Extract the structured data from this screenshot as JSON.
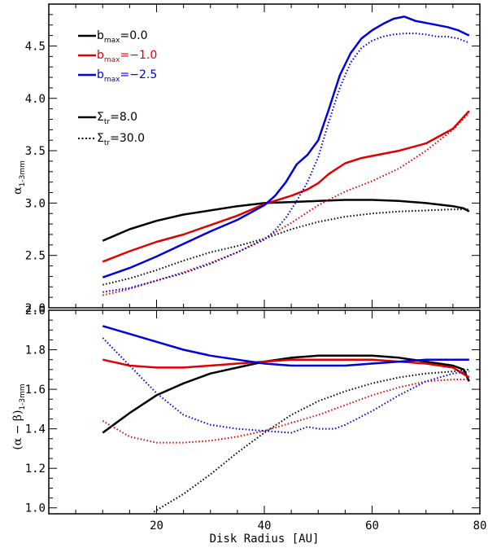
{
  "chart_data": [
    {
      "type": "line",
      "panel": "top",
      "title": "",
      "xlabel": "",
      "ylabel": "α",
      "ylabel_sub": "1-3mm",
      "xlim": [
        0,
        80
      ],
      "ylim": [
        2.0,
        4.9
      ],
      "xticks": [
        20,
        40,
        60,
        80
      ],
      "yticks": [
        2.0,
        2.5,
        3.0,
        3.5,
        4.0,
        4.5
      ],
      "ytick_labels": [
        "2.0",
        "2.5",
        "3.0",
        "3.5",
        "4.0",
        "4.5"
      ],
      "legend": [
        {
          "prefix": "b",
          "sub": "max",
          "suffix": "=0.0",
          "color": "#000000",
          "style": "solid"
        },
        {
          "prefix": "b",
          "sub": "max",
          "suffix": "=−1.0",
          "color": "#e00000",
          "style": "solid"
        },
        {
          "prefix": "b",
          "sub": "max",
          "suffix": "=−2.5",
          "color": "#0000e0",
          "style": "solid"
        },
        {
          "prefix": "Σ",
          "sub": "tr",
          "suffix": "=8.0",
          "color": "#000000",
          "style": "solid"
        },
        {
          "prefix": "Σ",
          "sub": "tr",
          "suffix": "=30.0",
          "color": "#000000",
          "style": "dotted"
        }
      ],
      "series": [
        {
          "color": "#000000",
          "style": "solid",
          "x": [
            10,
            15,
            20,
            25,
            30,
            35,
            40,
            45,
            50,
            55,
            60,
            65,
            70,
            75,
            77,
            78
          ],
          "y": [
            2.64,
            2.75,
            2.83,
            2.89,
            2.93,
            2.97,
            3.0,
            3.01,
            3.02,
            3.03,
            3.03,
            3.02,
            3.0,
            2.97,
            2.95,
            2.92
          ]
        },
        {
          "color": "#e00000",
          "style": "solid",
          "x": [
            10,
            15,
            20,
            25,
            30,
            35,
            40,
            45,
            48,
            50,
            52,
            55,
            58,
            60,
            65,
            70,
            75,
            78
          ],
          "y": [
            2.44,
            2.54,
            2.63,
            2.7,
            2.79,
            2.88,
            2.99,
            3.07,
            3.13,
            3.19,
            3.28,
            3.38,
            3.43,
            3.45,
            3.5,
            3.57,
            3.71,
            3.88
          ]
        },
        {
          "color": "#0000e0",
          "style": "solid",
          "x": [
            10,
            15,
            20,
            25,
            30,
            35,
            40,
            42,
            44,
            46,
            48,
            50,
            52,
            54,
            56,
            58,
            60,
            62,
            64,
            66,
            68,
            70,
            72,
            74,
            76,
            78
          ],
          "y": [
            2.29,
            2.38,
            2.49,
            2.61,
            2.73,
            2.84,
            2.98,
            3.07,
            3.2,
            3.37,
            3.46,
            3.6,
            3.9,
            4.22,
            4.43,
            4.57,
            4.65,
            4.71,
            4.76,
            4.78,
            4.74,
            4.72,
            4.7,
            4.68,
            4.65,
            4.6
          ]
        },
        {
          "color": "#000000",
          "style": "dotted",
          "x": [
            10,
            15,
            20,
            25,
            30,
            35,
            40,
            45,
            50,
            55,
            60,
            65,
            70,
            75,
            78
          ],
          "y": [
            2.22,
            2.28,
            2.36,
            2.45,
            2.53,
            2.59,
            2.66,
            2.75,
            2.82,
            2.87,
            2.9,
            2.92,
            2.93,
            2.94,
            2.94
          ]
        },
        {
          "color": "#e00000",
          "style": "dotted",
          "x": [
            10,
            15,
            20,
            25,
            30,
            35,
            40,
            45,
            50,
            55,
            60,
            65,
            70,
            75,
            78
          ],
          "y": [
            2.12,
            2.18,
            2.26,
            2.34,
            2.43,
            2.53,
            2.66,
            2.81,
            2.98,
            3.11,
            3.21,
            3.33,
            3.5,
            3.7,
            3.86
          ]
        },
        {
          "color": "#0000e0",
          "style": "dotted",
          "x": [
            10,
            15,
            20,
            25,
            30,
            35,
            40,
            42,
            44,
            46,
            48,
            50,
            52,
            54,
            56,
            58,
            60,
            62,
            64,
            66,
            68,
            70,
            72,
            74,
            76,
            78
          ],
          "y": [
            2.15,
            2.19,
            2.26,
            2.33,
            2.42,
            2.53,
            2.65,
            2.74,
            2.86,
            3.02,
            3.2,
            3.44,
            3.78,
            4.1,
            4.34,
            4.48,
            4.55,
            4.59,
            4.61,
            4.62,
            4.62,
            4.61,
            4.59,
            4.59,
            4.57,
            4.53
          ]
        }
      ]
    },
    {
      "type": "line",
      "panel": "bottom",
      "title": "",
      "xlabel": "Disk Radius [AU]",
      "ylabel": "(α − β)",
      "ylabel_sub": "1-3mm",
      "xlim": [
        0,
        80
      ],
      "ylim": [
        0.97,
        2.0
      ],
      "xticks": [
        20,
        40,
        60,
        80
      ],
      "xtick_labels": [
        "20",
        "40",
        "60",
        "80"
      ],
      "yticks": [
        1.0,
        1.2,
        1.4,
        1.6,
        1.8,
        2.0
      ],
      "ytick_labels": [
        "1.0",
        "1.2",
        "1.4",
        "1.6",
        "1.8",
        "2.0"
      ],
      "series": [
        {
          "color": "#000000",
          "style": "solid",
          "x": [
            10,
            15,
            20,
            25,
            30,
            35,
            40,
            45,
            50,
            55,
            60,
            65,
            70,
            75,
            77,
            78
          ],
          "y": [
            1.38,
            1.48,
            1.57,
            1.63,
            1.68,
            1.71,
            1.74,
            1.76,
            1.77,
            1.77,
            1.77,
            1.76,
            1.74,
            1.72,
            1.7,
            1.64
          ]
        },
        {
          "color": "#e00000",
          "style": "solid",
          "x": [
            10,
            15,
            20,
            25,
            30,
            35,
            40,
            45,
            50,
            55,
            60,
            65,
            70,
            75,
            78
          ],
          "y": [
            1.75,
            1.72,
            1.71,
            1.71,
            1.72,
            1.73,
            1.74,
            1.75,
            1.75,
            1.75,
            1.75,
            1.74,
            1.73,
            1.71,
            1.66
          ]
        },
        {
          "color": "#0000e0",
          "style": "solid",
          "x": [
            10,
            15,
            20,
            25,
            30,
            35,
            40,
            45,
            50,
            55,
            60,
            65,
            70,
            75,
            78
          ],
          "y": [
            1.92,
            1.88,
            1.84,
            1.8,
            1.77,
            1.75,
            1.73,
            1.72,
            1.72,
            1.72,
            1.73,
            1.74,
            1.75,
            1.75,
            1.75
          ]
        },
        {
          "color": "#000000",
          "style": "dotted",
          "x": [
            19.5,
            25,
            30,
            35,
            40,
            45,
            50,
            55,
            60,
            65,
            70,
            75,
            78
          ],
          "y": [
            0.98,
            1.07,
            1.17,
            1.28,
            1.38,
            1.47,
            1.54,
            1.59,
            1.63,
            1.66,
            1.68,
            1.69,
            1.7
          ]
        },
        {
          "color": "#e00000",
          "style": "dotted",
          "x": [
            10,
            15,
            20,
            25,
            30,
            35,
            40,
            45,
            50,
            55,
            60,
            65,
            70,
            75,
            78
          ],
          "y": [
            1.44,
            1.36,
            1.33,
            1.33,
            1.34,
            1.36,
            1.39,
            1.43,
            1.47,
            1.52,
            1.57,
            1.61,
            1.64,
            1.65,
            1.65
          ]
        },
        {
          "color": "#0000e0",
          "style": "dotted",
          "x": [
            10,
            15,
            20,
            25,
            30,
            35,
            40,
            45,
            48,
            50,
            53,
            55,
            60,
            65,
            70,
            75,
            78
          ],
          "y": [
            1.86,
            1.72,
            1.58,
            1.47,
            1.42,
            1.4,
            1.39,
            1.38,
            1.41,
            1.4,
            1.4,
            1.42,
            1.49,
            1.57,
            1.64,
            1.68,
            1.69
          ]
        }
      ]
    }
  ]
}
